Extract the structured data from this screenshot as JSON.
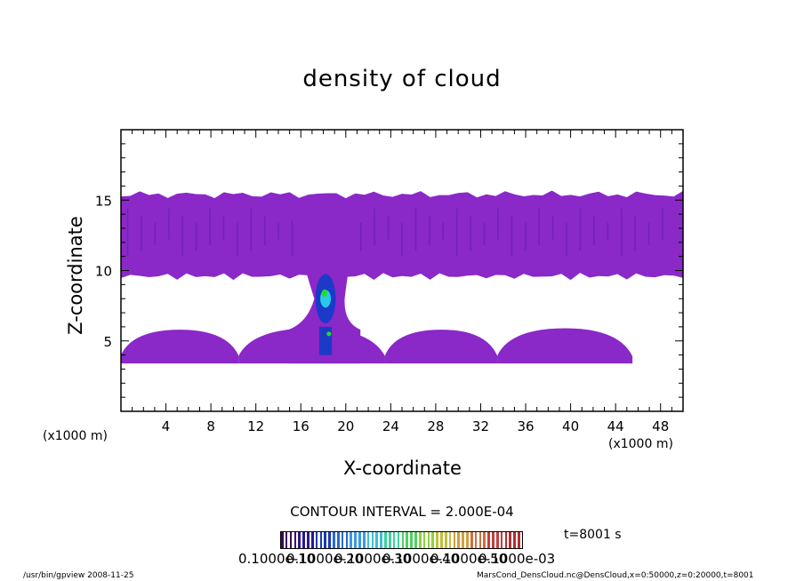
{
  "chart_data": {
    "type": "heatmap",
    "title": "density of cloud",
    "xlabel": "X-coordinate",
    "ylabel": "Z-coordinate",
    "x_unit": "(x1000 m)",
    "xlim": [
      0,
      50
    ],
    "ylim": [
      0,
      20
    ],
    "xticks": [
      4,
      8,
      12,
      16,
      20,
      24,
      28,
      32,
      36,
      40,
      44,
      48
    ],
    "yticks": [
      5,
      10,
      15
    ],
    "contour_interval": "CONTOUR INTERVAL = 2.000E-04",
    "colorbar_labels": [
      "0.1000e-10",
      "0.1000e-20",
      "0.1000e-30",
      "0.1000e-40",
      "0.1000e-50",
      "0.1000e-03"
    ],
    "time_label": "t=8001 s",
    "regions": {
      "upper_layer": {
        "x": [
          0,
          50
        ],
        "z": [
          9.6,
          15.4
        ]
      },
      "column": {
        "x": [
          14.9,
          21.3
        ],
        "z": [
          4.0,
          14.6
        ]
      },
      "core": {
        "x": [
          17.8,
          18.6
        ],
        "z": [
          4.0,
          9.2
        ]
      },
      "lower_domes": [
        {
          "x": [
            0,
            10.5
          ],
          "z_top": 5.8
        },
        {
          "x": [
            10.5,
            23.5
          ],
          "z_top": 5.9
        },
        {
          "x": [
            23.5,
            33.5
          ],
          "z_top": 5.8
        },
        {
          "x": [
            33.5,
            45.5
          ],
          "z_top": 5.9
        }
      ]
    },
    "colors": {
      "cloud": "#8a28c8",
      "cloud_dark": "#6a1eb0",
      "core_blue": "#1c3ac8",
      "core_cyan": "#28c8e8",
      "core_green": "#20e020"
    }
  },
  "footer": {
    "left": "/usr/bin/gpview   2008-11-25",
    "right": "MarsCond_DensCloud.nc@DensCloud,x=0:50000,z=0:20000,t=8001"
  }
}
